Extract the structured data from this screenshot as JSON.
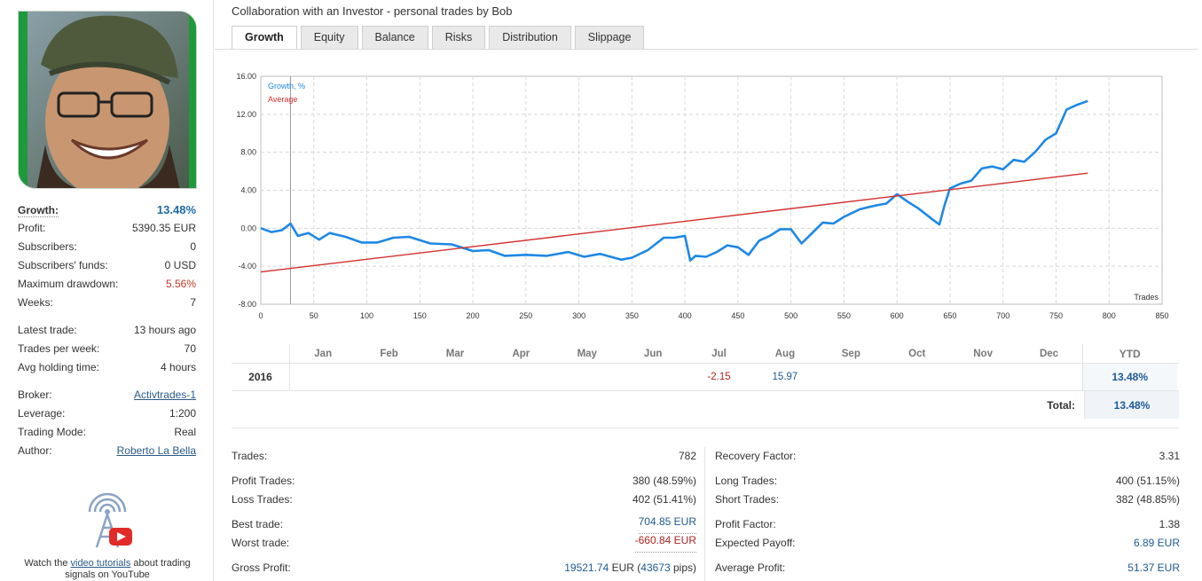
{
  "sidebar": {
    "stats": [
      {
        "label": "Growth:",
        "value": "13.48%"
      },
      {
        "label": "Profit:",
        "value": "5390.35 EUR"
      },
      {
        "label": "Subscribers:",
        "value": "0"
      },
      {
        "label": "Subscribers' funds:",
        "value": "0 USD"
      },
      {
        "label": "Maximum drawdown:",
        "value": "5.56%"
      },
      {
        "label": "Weeks:",
        "value": "7"
      },
      {
        "label": "Latest trade:",
        "value": "13 hours ago"
      },
      {
        "label": "Trades per week:",
        "value": "70"
      },
      {
        "label": "Avg holding time:",
        "value": "4 hours"
      },
      {
        "label": "Broker:",
        "value": "Activtrades-1"
      },
      {
        "label": "Leverage:",
        "value": "1:200"
      },
      {
        "label": "Trading Mode:",
        "value": "Real"
      },
      {
        "label": "Author:",
        "value": "Roberto La Bella"
      }
    ],
    "video": {
      "before": "Watch the ",
      "link": "video tutorials",
      "after": " about trading signals on YouTube"
    }
  },
  "header": {
    "title": "Collaboration with an Investor - personal trades by Bob"
  },
  "tabs": [
    "Growth",
    "Equity",
    "Balance",
    "Risks",
    "Distribution",
    "Slippage"
  ],
  "chart_data": {
    "type": "line",
    "xlabel": "Trades",
    "ylabel": "",
    "xlim": [
      0,
      850
    ],
    "ylim": [
      -8,
      16
    ],
    "x_ticks": [
      "0",
      "50",
      "100",
      "150",
      "200",
      "250",
      "300",
      "350",
      "400",
      "450",
      "500",
      "550",
      "600",
      "650",
      "700",
      "750",
      "800",
      "850"
    ],
    "y_ticks": [
      "16.00",
      "12.00",
      "8.00",
      "4.00",
      "0.00",
      "-4.00",
      "-8.00"
    ],
    "grid": true,
    "legend": "top-left",
    "marker_line_x": 28,
    "series": [
      {
        "name": "Growth, %",
        "color": "#1e88e5",
        "x": [
          0,
          10,
          20,
          28,
          35,
          45,
          55,
          65,
          80,
          95,
          110,
          125,
          140,
          160,
          180,
          200,
          215,
          230,
          250,
          270,
          290,
          305,
          320,
          340,
          350,
          365,
          380,
          390,
          400,
          405,
          410,
          420,
          430,
          440,
          450,
          460,
          470,
          480,
          490,
          500,
          510,
          520,
          530,
          540,
          550,
          565,
          580,
          590,
          600,
          610,
          620,
          635,
          640,
          645,
          650,
          660,
          670,
          680,
          690,
          700,
          710,
          720,
          730,
          740,
          750,
          760,
          770,
          780
        ],
        "values": [
          0.0,
          -0.4,
          -0.2,
          0.5,
          -0.8,
          -0.5,
          -1.2,
          -0.5,
          -0.9,
          -1.5,
          -1.5,
          -1.0,
          -0.9,
          -1.6,
          -1.7,
          -2.4,
          -2.3,
          -2.9,
          -2.8,
          -2.9,
          -2.5,
          -3.0,
          -2.7,
          -3.3,
          -3.1,
          -2.3,
          -1.0,
          -1.0,
          -0.8,
          -3.4,
          -2.9,
          -3.0,
          -2.5,
          -1.8,
          -2.0,
          -2.8,
          -1.3,
          -0.8,
          -0.1,
          -0.1,
          -1.6,
          -0.5,
          0.6,
          0.5,
          1.2,
          2.0,
          2.4,
          2.6,
          3.6,
          2.8,
          2.1,
          0.8,
          0.4,
          2.5,
          4.2,
          4.7,
          5.0,
          6.3,
          6.5,
          6.2,
          7.2,
          7.0,
          8.0,
          9.3,
          10.0,
          12.5,
          13.0,
          13.4
        ]
      },
      {
        "name": "Average",
        "color": "#d32f2f",
        "x": [
          0,
          780
        ],
        "values": [
          -4.6,
          5.8
        ]
      }
    ]
  },
  "monthly": {
    "months": [
      "Jan",
      "Feb",
      "Mar",
      "Apr",
      "May",
      "Jun",
      "Jul",
      "Aug",
      "Sep",
      "Oct",
      "Nov",
      "Dec"
    ],
    "ytd_label": "YTD",
    "year": "2016",
    "values": [
      "",
      "",
      "",
      "",
      "",
      "",
      "-2.15",
      "15.97",
      "",
      "",
      "",
      ""
    ],
    "ytd": "13.48%",
    "total_label": "Total:",
    "total": "13.48%"
  },
  "stats_left": [
    {
      "label": "Trades:",
      "value": "782"
    },
    {
      "label": "Profit Trades:",
      "value": "380 (48.59%)"
    },
    {
      "label": "Loss Trades:",
      "value": "402 (51.41%)"
    },
    {
      "label": "Best trade:",
      "value": "704.85 EUR"
    },
    {
      "label": "Worst trade:",
      "value": "-660.84 EUR"
    },
    {
      "label": "Gross Profit:",
      "value_main": "19521.74",
      "value_unit": " EUR (",
      "value_pips": "43673",
      "value_tail": " pips)"
    }
  ],
  "stats_right": [
    {
      "label": "Recovery Factor:",
      "value": "3.31"
    },
    {
      "label": "Long Trades:",
      "value": "400 (51.15%)"
    },
    {
      "label": "Short Trades:",
      "value": "382 (48.85%)"
    },
    {
      "label": "Profit Factor:",
      "value": "1.38"
    },
    {
      "label": "Expected Payoff:",
      "value": "6.89 EUR"
    },
    {
      "label": "Average Profit:",
      "value": "51.37 EUR"
    }
  ]
}
